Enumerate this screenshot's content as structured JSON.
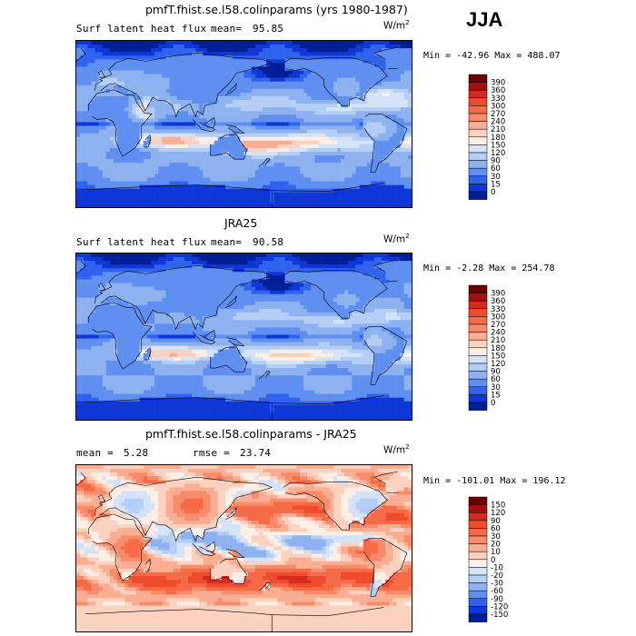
{
  "figure": {
    "season": "JJA",
    "units": {
      "base": "W/m",
      "exp": "2"
    }
  },
  "panels": [
    {
      "id": "model",
      "title": "pmfT.fhist.se.l58.colinparams (yrs 1980-1987)",
      "left_label": "Surf latent heat flux",
      "mean_label": "mean=",
      "mean_value": "95.85",
      "rmse_label": "",
      "rmse_value": "",
      "minmax": "Min = -42.96 Max = 488.07",
      "colorbar": {
        "labels": [
          "390",
          "360",
          "330",
          "300",
          "270",
          "240",
          "210",
          "180",
          "150",
          "120",
          "90",
          "60",
          "30",
          "15",
          "0"
        ],
        "colors": [
          "#6b0000",
          "#a50f0f",
          "#d62a1c",
          "#ef4b2c",
          "#f56a47",
          "#f78b6a",
          "#f9ae93",
          "#fbd2bf",
          "#fdeee6",
          "#d5e3f8",
          "#b5cef5",
          "#8eb2f0",
          "#5f8ff0",
          "#2f63ee",
          "#0f37d8",
          "#001e96"
        ]
      }
    },
    {
      "id": "obs",
      "title": "JRA25",
      "left_label": "Surf latent heat flux",
      "mean_label": "mean=",
      "mean_value": "90.58",
      "rmse_label": "",
      "rmse_value": "",
      "minmax": "Min = -2.28 Max = 254.78",
      "colorbar": {
        "labels": [
          "390",
          "360",
          "330",
          "300",
          "270",
          "240",
          "210",
          "180",
          "150",
          "120",
          "90",
          "60",
          "30",
          "15",
          "0"
        ],
        "colors": [
          "#6b0000",
          "#a50f0f",
          "#d62a1c",
          "#ef4b2c",
          "#f56a47",
          "#f78b6a",
          "#f9ae93",
          "#fbd2bf",
          "#fdeee6",
          "#d5e3f8",
          "#b5cef5",
          "#8eb2f0",
          "#5f8ff0",
          "#2f63ee",
          "#0f37d8",
          "#001e96"
        ]
      }
    },
    {
      "id": "diff",
      "title": "pmfT.fhist.se.l58.colinparams - JRA25",
      "left_label": "",
      "mean_label": "mean =",
      "mean_value": "5.28",
      "rmse_label": "rmse =",
      "rmse_value": "23.74",
      "minmax": "Min = -101.01 Max = 196.12",
      "colorbar": {
        "labels": [
          "150",
          "120",
          "90",
          "60",
          "30",
          "20",
          "10",
          "0",
          "-10",
          "-20",
          "-30",
          "-60",
          "-90",
          "-120",
          "-150"
        ],
        "colors": [
          "#6b0000",
          "#a50f0f",
          "#d62a1c",
          "#ef4b2c",
          "#f56a47",
          "#f78b6a",
          "#f9ae93",
          "#fbd2bf",
          "#fdeee6",
          "#d5e3f8",
          "#b5cef5",
          "#8eb2f0",
          "#5f8ff0",
          "#2f63ee",
          "#0f37d8",
          "#001e96"
        ]
      }
    }
  ],
  "chart_data": [
    {
      "type": "heatmap",
      "title": "pmfT.fhist.se.l58.colinparams (yrs 1980-1987)",
      "variable": "Surf latent heat flux",
      "units": "W/m2",
      "season": "JJA",
      "mean": 95.85,
      "min": -42.96,
      "max": 488.07,
      "contour_levels": [
        0,
        15,
        30,
        60,
        90,
        120,
        150,
        180,
        210,
        240,
        270,
        300,
        330,
        360,
        390
      ],
      "pattern": "model"
    },
    {
      "type": "heatmap",
      "title": "JRA25",
      "variable": "Surf latent heat flux",
      "units": "W/m2",
      "season": "JJA",
      "mean": 90.58,
      "min": -2.28,
      "max": 254.78,
      "contour_levels": [
        0,
        15,
        30,
        60,
        90,
        120,
        150,
        180,
        210,
        240,
        270,
        300,
        330,
        360,
        390
      ],
      "pattern": "obs"
    },
    {
      "type": "heatmap",
      "title": "pmfT.fhist.se.l58.colinparams - JRA25",
      "units": "W/m2",
      "season": "JJA",
      "mean": 5.28,
      "rmse": 23.74,
      "min": -101.01,
      "max": 196.12,
      "contour_levels": [
        -150,
        -120,
        -90,
        -60,
        -30,
        -20,
        -10,
        0,
        10,
        20,
        30,
        60,
        90,
        120,
        150
      ],
      "pattern": "diff"
    }
  ]
}
